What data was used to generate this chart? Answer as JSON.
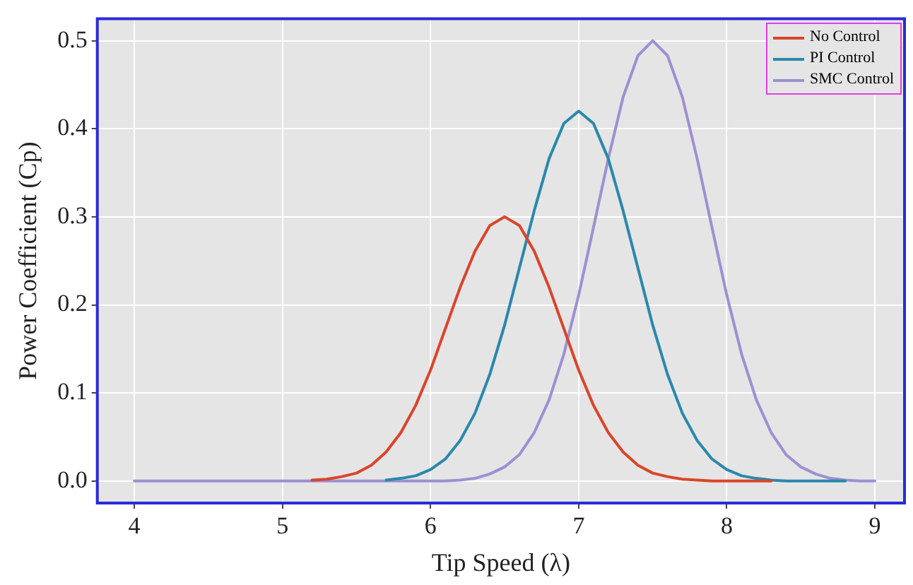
{
  "chart_data": {
    "type": "line",
    "xlabel": "Tip Speed (λ)",
    "ylabel": "Power Coefficient (Cp)",
    "x": [
      4.0,
      4.1,
      4.2,
      4.3,
      4.4,
      4.5,
      4.6,
      4.7,
      4.8,
      4.9,
      5.0,
      5.1,
      5.2,
      5.3,
      5.4,
      5.5,
      5.6,
      5.7,
      5.8,
      5.9,
      6.0,
      6.1,
      6.2,
      6.3,
      6.4,
      6.5,
      6.6,
      6.7,
      6.8,
      6.9,
      7.0,
      7.1,
      7.2,
      7.3,
      7.4,
      7.5,
      7.6,
      7.7,
      7.8,
      7.9,
      8.0,
      8.1,
      8.2,
      8.3,
      8.4,
      8.5,
      8.6,
      8.7,
      8.8,
      8.9,
      9.0
    ],
    "series": [
      {
        "name": "No Control",
        "color": "#d9452b",
        "values": [
          null,
          null,
          null,
          null,
          null,
          null,
          null,
          null,
          null,
          null,
          null,
          null,
          0.001,
          0.002,
          0.005,
          0.009,
          0.018,
          0.033,
          0.055,
          0.086,
          0.126,
          0.173,
          0.22,
          0.261,
          0.29,
          0.3,
          0.29,
          0.261,
          0.22,
          0.173,
          0.126,
          0.086,
          0.055,
          0.033,
          0.018,
          0.009,
          0.005,
          0.002,
          0.001,
          0,
          0,
          0,
          0,
          0,
          null,
          null,
          null,
          null,
          null,
          null,
          null
        ]
      },
      {
        "name": "PI Control",
        "color": "#2a88ad",
        "values": [
          null,
          null,
          null,
          null,
          null,
          null,
          null,
          null,
          null,
          null,
          null,
          null,
          null,
          null,
          null,
          null,
          null,
          0.001,
          0.003,
          0.006,
          0.013,
          0.025,
          0.046,
          0.077,
          0.121,
          0.177,
          0.242,
          0.307,
          0.366,
          0.406,
          0.42,
          0.406,
          0.366,
          0.307,
          0.242,
          0.177,
          0.121,
          0.077,
          0.046,
          0.025,
          0.013,
          0.006,
          0.003,
          0.001,
          0,
          0,
          0,
          0,
          0,
          null,
          null
        ]
      },
      {
        "name": "SMC Control",
        "color": "#9d90d2",
        "values": [
          0,
          0,
          0,
          0,
          0,
          0,
          0,
          0,
          0,
          0,
          0,
          0,
          0,
          0,
          0,
          0,
          0,
          0,
          0,
          0,
          0,
          0,
          0.001,
          0.003,
          0.008,
          0.016,
          0.03,
          0.055,
          0.092,
          0.144,
          0.211,
          0.288,
          0.366,
          0.436,
          0.483,
          0.5,
          0.483,
          0.436,
          0.366,
          0.288,
          0.211,
          0.144,
          0.092,
          0.055,
          0.03,
          0.016,
          0.008,
          0.003,
          0.001,
          0,
          0
        ]
      }
    ],
    "xlim": [
      3.75,
      9.2
    ],
    "xticks": [
      4,
      5,
      6,
      7,
      8,
      9
    ],
    "ylim": [
      -0.025,
      0.525
    ],
    "yticks": [
      {
        "value": 0,
        "label": "0.0"
      },
      0.1,
      0.2,
      0.3,
      0.4,
      0.5
    ],
    "grid": true,
    "legend": "top right",
    "marker": "none",
    "line_style": "solid"
  }
}
